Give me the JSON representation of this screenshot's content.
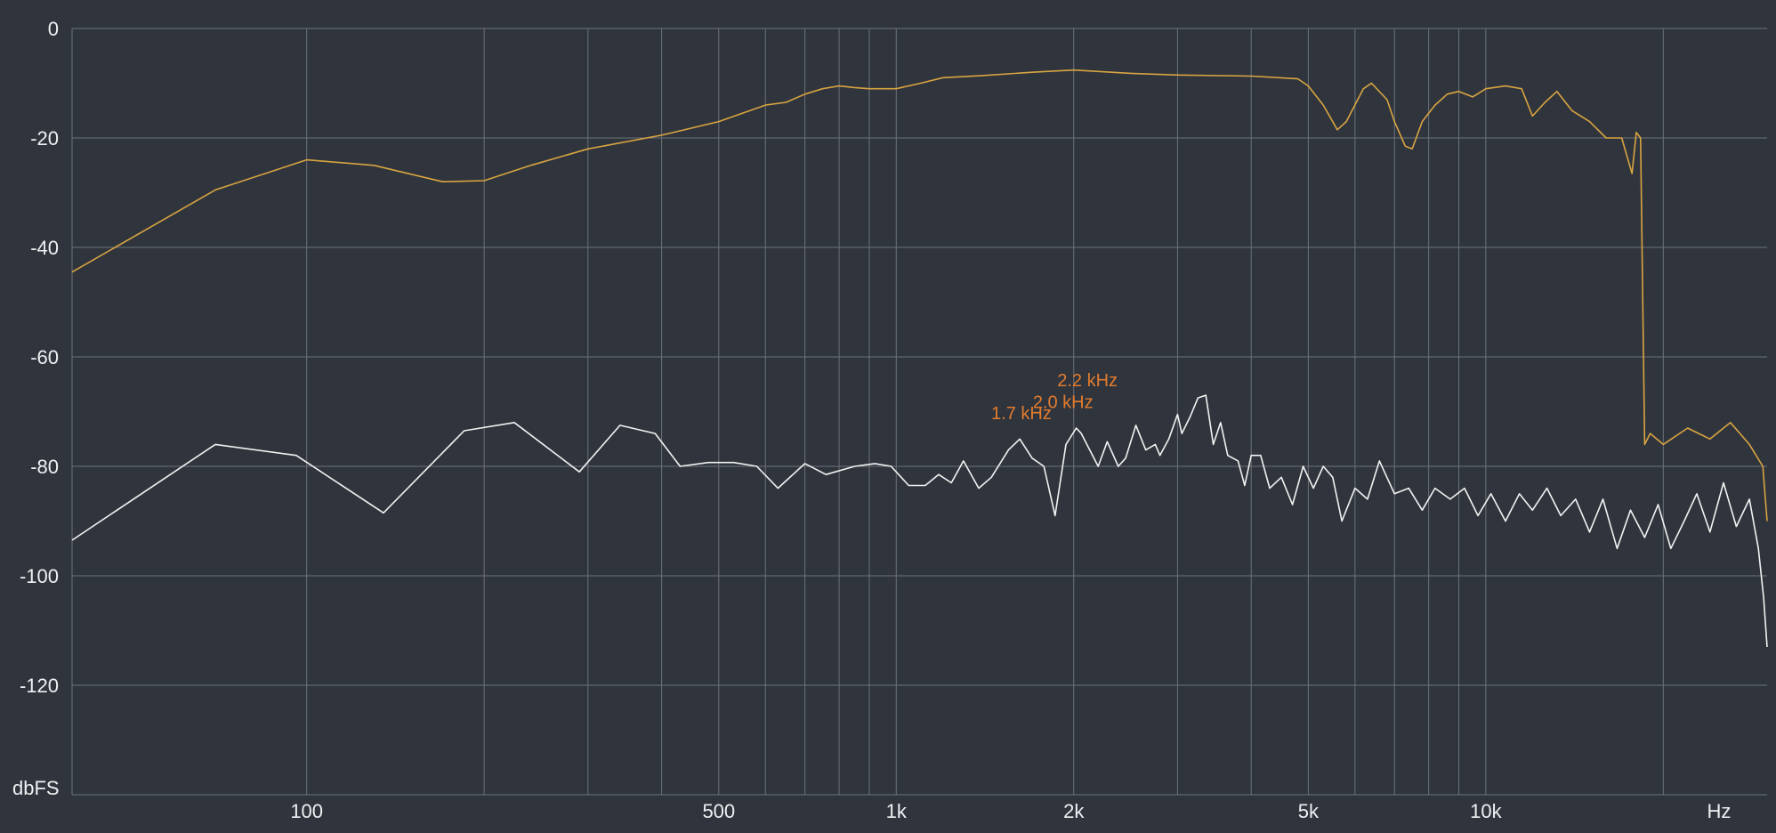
{
  "chart_data": {
    "type": "line",
    "x_scale": "log",
    "xlim": [
      40,
      30000
    ],
    "ylim": [
      -140,
      0
    ],
    "grid": true,
    "xlabel": "Hz",
    "ylabel": "dbFS",
    "x_ticks": [
      {
        "value": 100,
        "label": "100"
      },
      {
        "value": 500,
        "label": "500"
      },
      {
        "value": 1000,
        "label": "1k"
      },
      {
        "value": 2000,
        "label": "2k"
      },
      {
        "value": 5000,
        "label": "5k"
      },
      {
        "value": 10000,
        "label": "10k"
      }
    ],
    "x_gridlines": [
      100,
      200,
      300,
      400,
      500,
      600,
      700,
      800,
      900,
      1000,
      2000,
      3000,
      4000,
      5000,
      6000,
      7000,
      8000,
      9000,
      10000,
      20000
    ],
    "y_ticks": [
      0,
      -20,
      -40,
      -60,
      -80,
      -100,
      -120
    ],
    "annotations": [
      {
        "label": "2.2 kHz",
        "x": 2200,
        "y": -67
      },
      {
        "label": "2.0 kHz",
        "x": 2000,
        "y": -71
      },
      {
        "label": "1.7 kHz",
        "x": 1700,
        "y": -73
      }
    ],
    "series": [
      {
        "color": "#d9a441",
        "points": [
          [
            40,
            -44.5
          ],
          [
            70,
            -29.5
          ],
          [
            100,
            -24
          ],
          [
            130,
            -25
          ],
          [
            170,
            -28
          ],
          [
            200,
            -27.8
          ],
          [
            240,
            -25
          ],
          [
            300,
            -22
          ],
          [
            400,
            -19.5
          ],
          [
            500,
            -17
          ],
          [
            600,
            -14
          ],
          [
            650,
            -13.5
          ],
          [
            700,
            -12
          ],
          [
            750,
            -11
          ],
          [
            800,
            -10.5
          ],
          [
            850,
            -10.8
          ],
          [
            900,
            -11
          ],
          [
            1000,
            -11
          ],
          [
            1100,
            -10
          ],
          [
            1200,
            -9
          ],
          [
            1400,
            -8.6
          ],
          [
            1700,
            -8
          ],
          [
            2000,
            -7.6
          ],
          [
            2500,
            -8.2
          ],
          [
            3000,
            -8.5
          ],
          [
            4000,
            -8.7
          ],
          [
            4800,
            -9.2
          ],
          [
            5000,
            -10.5
          ],
          [
            5300,
            -14
          ],
          [
            5600,
            -18.5
          ],
          [
            5800,
            -17
          ],
          [
            6200,
            -11
          ],
          [
            6400,
            -10
          ],
          [
            6800,
            -13
          ],
          [
            7000,
            -17
          ],
          [
            7300,
            -21.5
          ],
          [
            7500,
            -22
          ],
          [
            7800,
            -17
          ],
          [
            8200,
            -14
          ],
          [
            8600,
            -12
          ],
          [
            9000,
            -11.5
          ],
          [
            9500,
            -12.5
          ],
          [
            10000,
            -11
          ],
          [
            10800,
            -10.5
          ],
          [
            11500,
            -11
          ],
          [
            12000,
            -16
          ],
          [
            12600,
            -13.5
          ],
          [
            13200,
            -11.5
          ],
          [
            14000,
            -15
          ],
          [
            15000,
            -17
          ],
          [
            16000,
            -20
          ],
          [
            17000,
            -20
          ],
          [
            17700,
            -26.5
          ],
          [
            18000,
            -19
          ],
          [
            18300,
            -20
          ],
          [
            18600,
            -76
          ],
          [
            19000,
            -74
          ],
          [
            20000,
            -76
          ],
          [
            22000,
            -73
          ],
          [
            24000,
            -75
          ],
          [
            26000,
            -72
          ],
          [
            28000,
            -76
          ],
          [
            29500,
            -80
          ],
          [
            30000,
            -90
          ]
        ]
      },
      {
        "color": "#f2f2f2",
        "points": [
          [
            40,
            -93.5
          ],
          [
            70,
            -76
          ],
          [
            96,
            -78
          ],
          [
            135,
            -88.5
          ],
          [
            185,
            -73.5
          ],
          [
            225,
            -72
          ],
          [
            290,
            -81
          ],
          [
            340,
            -72.5
          ],
          [
            390,
            -74
          ],
          [
            430,
            -80
          ],
          [
            480,
            -79.3
          ],
          [
            530,
            -79.3
          ],
          [
            580,
            -80
          ],
          [
            630,
            -84
          ],
          [
            700,
            -79.5
          ],
          [
            760,
            -81.5
          ],
          [
            850,
            -80
          ],
          [
            920,
            -79.5
          ],
          [
            980,
            -80
          ],
          [
            1050,
            -83.5
          ],
          [
            1120,
            -83.5
          ],
          [
            1180,
            -81.5
          ],
          [
            1240,
            -83
          ],
          [
            1300,
            -79
          ],
          [
            1380,
            -84
          ],
          [
            1450,
            -82
          ],
          [
            1550,
            -77
          ],
          [
            1620,
            -75
          ],
          [
            1700,
            -78.5
          ],
          [
            1780,
            -80
          ],
          [
            1860,
            -89
          ],
          [
            1940,
            -76
          ],
          [
            2020,
            -73
          ],
          [
            2060,
            -74
          ],
          [
            2200,
            -80
          ],
          [
            2280,
            -75.5
          ],
          [
            2380,
            -80
          ],
          [
            2450,
            -78.5
          ],
          [
            2550,
            -72.5
          ],
          [
            2650,
            -77
          ],
          [
            2750,
            -76
          ],
          [
            2800,
            -78
          ],
          [
            2900,
            -75
          ],
          [
            3000,
            -70.5
          ],
          [
            3050,
            -74
          ],
          [
            3150,
            -71
          ],
          [
            3250,
            -67.5
          ],
          [
            3350,
            -67
          ],
          [
            3450,
            -76
          ],
          [
            3550,
            -72
          ],
          [
            3650,
            -78
          ],
          [
            3800,
            -79
          ],
          [
            3900,
            -83.5
          ],
          [
            4000,
            -78
          ],
          [
            4150,
            -78
          ],
          [
            4300,
            -84
          ],
          [
            4500,
            -82
          ],
          [
            4700,
            -87
          ],
          [
            4900,
            -80
          ],
          [
            5100,
            -84
          ],
          [
            5300,
            -80
          ],
          [
            5500,
            -82
          ],
          [
            5700,
            -90
          ],
          [
            6000,
            -84
          ],
          [
            6300,
            -86
          ],
          [
            6600,
            -79
          ],
          [
            7000,
            -85
          ],
          [
            7400,
            -84
          ],
          [
            7800,
            -88
          ],
          [
            8200,
            -84
          ],
          [
            8700,
            -86
          ],
          [
            9200,
            -84
          ],
          [
            9700,
            -89
          ],
          [
            10200,
            -85
          ],
          [
            10800,
            -90
          ],
          [
            11400,
            -85
          ],
          [
            12000,
            -88
          ],
          [
            12700,
            -84
          ],
          [
            13400,
            -89
          ],
          [
            14200,
            -86
          ],
          [
            15000,
            -92
          ],
          [
            15800,
            -86
          ],
          [
            16700,
            -95
          ],
          [
            17600,
            -88
          ],
          [
            18600,
            -93
          ],
          [
            19600,
            -87
          ],
          [
            20600,
            -95
          ],
          [
            21700,
            -90
          ],
          [
            22800,
            -85
          ],
          [
            24000,
            -92
          ],
          [
            25300,
            -83
          ],
          [
            26600,
            -91
          ],
          [
            28000,
            -86
          ],
          [
            29000,
            -95
          ],
          [
            29600,
            -104
          ],
          [
            30000,
            -113
          ]
        ]
      }
    ]
  }
}
